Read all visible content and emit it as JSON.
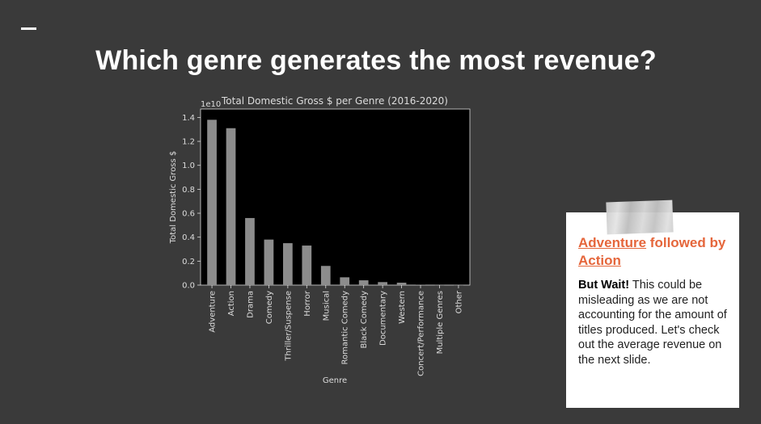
{
  "slide": {
    "title": "Which genre generates the most revenue?"
  },
  "note": {
    "headline_part1": "Adventure",
    "headline_part2": " followed by ",
    "headline_part3": "Action",
    "body_bold": "But Wait!",
    "body_text": " This could be misleading as we are not accounting for the amount of titles produced.  Let's check out the average revenue on the next slide."
  },
  "chart_data": {
    "type": "bar",
    "title": "Total Domestic Gross $ per Genre (2016-2020)",
    "xlabel": "Genre",
    "ylabel": "Total Domestic Gross $",
    "scale_label": "1e10",
    "categories": [
      "Adventure",
      "Action",
      "Drama",
      "Comedy",
      "Thriller/Suspense",
      "Horror",
      "Musical",
      "Romantic Comedy",
      "Black Comedy",
      "Documentary",
      "Western",
      "Concert/Performance",
      "Multiple Genres",
      "Other"
    ],
    "values": [
      1.38,
      1.31,
      0.56,
      0.38,
      0.35,
      0.33,
      0.16,
      0.065,
      0.04,
      0.025,
      0.02,
      0.003,
      0.001,
      0.0005
    ],
    "yticks": [
      "0.0",
      "0.2",
      "0.4",
      "0.6",
      "0.8",
      "1.0",
      "1.2",
      "1.4"
    ],
    "ylim": [
      0,
      1.47
    ],
    "grid": false,
    "bar_color": "#8c8c8c",
    "background": "#000000"
  }
}
